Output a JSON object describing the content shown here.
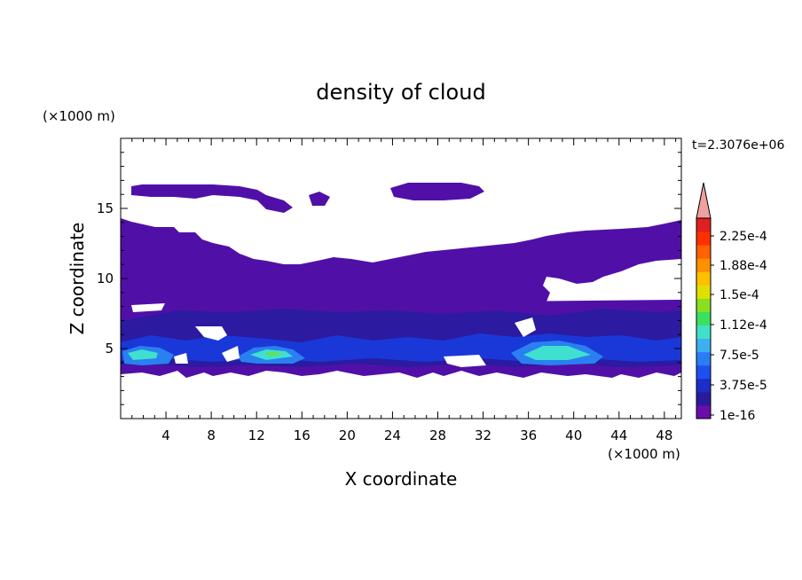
{
  "chart_data": {
    "type": "heatmap",
    "title": "density of cloud",
    "xlabel": "X coordinate",
    "ylabel": "Z coordinate",
    "x_unit": "(×1000 m)",
    "y_unit": "(×1000 m)",
    "time_label": "t=2.3076e+06",
    "xlim": [
      0,
      49.5
    ],
    "ylim": [
      0,
      20
    ],
    "x_ticks": [
      4,
      8,
      12,
      16,
      20,
      24,
      28,
      32,
      36,
      40,
      44,
      48
    ],
    "y_ticks": [
      5,
      10,
      15
    ],
    "colorbar": {
      "labels": [
        "2.25e-4",
        "1.88e-4",
        "1.5e-4",
        "1.12e-4",
        "7.5e-5",
        "3.75e-5",
        "1e-16"
      ],
      "colors": [
        "#6a0dad",
        "#2a1a9a",
        "#1c2dc8",
        "#1e4ff0",
        "#2a7df5",
        "#3cb0f0",
        "#3fe0c8",
        "#3ce060",
        "#88e020",
        "#e0e000",
        "#ffc000",
        "#ff9000",
        "#ff6000",
        "#ff3000",
        "#e02020"
      ],
      "extend_color": "#f0a0a0"
    },
    "field_colors": {
      "base": "#5010a8",
      "dark": "#2c1aa0",
      "mid": "#1a38d8",
      "light": "#2a80f0",
      "cyan": "#3fe0d0",
      "green": "#60e060"
    }
  }
}
